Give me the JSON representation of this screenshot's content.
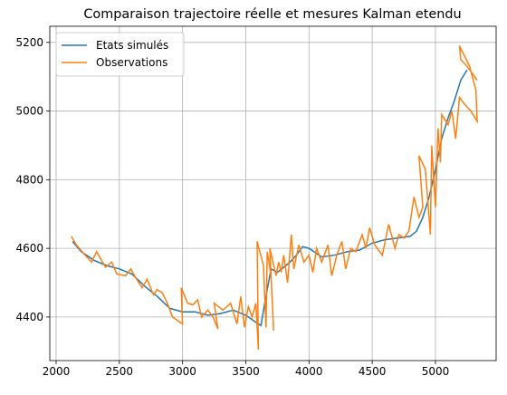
{
  "chart_data": {
    "type": "line",
    "title": "Comparaison trajectoire réelle et mesures Kalman etendu",
    "xlim": [
      1950,
      5480
    ],
    "ylim": [
      4273,
      5247
    ],
    "xticks": [
      2000,
      2500,
      3000,
      3500,
      4000,
      4500,
      5000
    ],
    "yticks": [
      4400,
      4600,
      4800,
      5000,
      5200
    ],
    "grid": true,
    "legend": "upper left",
    "series": [
      {
        "name": "Etats simulés",
        "color": "#1f77b4",
        "x": [
          2130,
          2200,
          2300,
          2400,
          2500,
          2600,
          2700,
          2800,
          2900,
          3000,
          3100,
          3200,
          3300,
          3400,
          3500,
          3580,
          3620,
          3650,
          3680,
          3700,
          3750,
          3800,
          3850,
          3900,
          3950,
          4000,
          4100,
          4200,
          4300,
          4400,
          4500,
          4600,
          4700,
          4800,
          4850,
          4900,
          4950,
          5000,
          5050,
          5100,
          5150,
          5200,
          5250
        ],
        "values": [
          4620,
          4590,
          4565,
          4550,
          4540,
          4525,
          4490,
          4460,
          4425,
          4415,
          4415,
          4405,
          4410,
          4420,
          4405,
          4385,
          4375,
          4440,
          4500,
          4540,
          4530,
          4545,
          4560,
          4580,
          4605,
          4600,
          4575,
          4580,
          4590,
          4595,
          4615,
          4625,
          4630,
          4635,
          4650,
          4690,
          4750,
          4830,
          4920,
          4980,
          5030,
          5090,
          5120
        ]
      },
      {
        "name": "Observations",
        "color": "#ff7f0e",
        "x": [
          2120,
          2160,
          2230,
          2280,
          2320,
          2390,
          2440,
          2480,
          2550,
          2590,
          2620,
          2680,
          2720,
          2770,
          2800,
          2840,
          2880,
          2920,
          3000,
          2990,
          3040,
          3080,
          3120,
          3150,
          3200,
          3240,
          3280,
          3250,
          3320,
          3380,
          3430,
          3460,
          3490,
          3520,
          3550,
          3580,
          3600,
          3590,
          3640,
          3660,
          3670,
          3700,
          3720,
          3690,
          3740,
          3760,
          3780,
          3800,
          3830,
          3860,
          3880,
          3920,
          3960,
          4000,
          4030,
          4060,
          4100,
          4150,
          4180,
          4220,
          4260,
          4290,
          4330,
          4370,
          4420,
          4450,
          4480,
          4520,
          4580,
          4630,
          4680,
          4710,
          4750,
          4790,
          4830,
          4870,
          4900,
          4870,
          4920,
          4960,
          4970,
          5000,
          5020,
          5040,
          5050,
          5100,
          5130,
          5160,
          5190,
          5230,
          5280,
          5330,
          5320,
          5270,
          5190,
          5200,
          5250,
          5330
        ],
        "values": [
          4635,
          4610,
          4580,
          4560,
          4590,
          4545,
          4560,
          4525,
          4520,
          4540,
          4520,
          4485,
          4510,
          4465,
          4480,
          4470,
          4440,
          4400,
          4380,
          4485,
          4440,
          4435,
          4450,
          4400,
          4420,
          4400,
          4365,
          4440,
          4420,
          4440,
          4380,
          4460,
          4370,
          4430,
          4400,
          4440,
          4305,
          4620,
          4550,
          4370,
          4590,
          4520,
          4360,
          4600,
          4520,
          4560,
          4530,
          4580,
          4500,
          4640,
          4540,
          4610,
          4560,
          4580,
          4530,
          4600,
          4560,
          4610,
          4520,
          4580,
          4620,
          4540,
          4600,
          4590,
          4640,
          4600,
          4660,
          4610,
          4580,
          4670,
          4600,
          4640,
          4630,
          4650,
          4750,
          4690,
          4720,
          4870,
          4830,
          4640,
          4900,
          4720,
          4950,
          4850,
          4990,
          4960,
          5000,
          4920,
          5040,
          5020,
          5000,
          4970,
          5060,
          5130,
          5190,
          5150,
          5130,
          5090
        ]
      }
    ]
  }
}
